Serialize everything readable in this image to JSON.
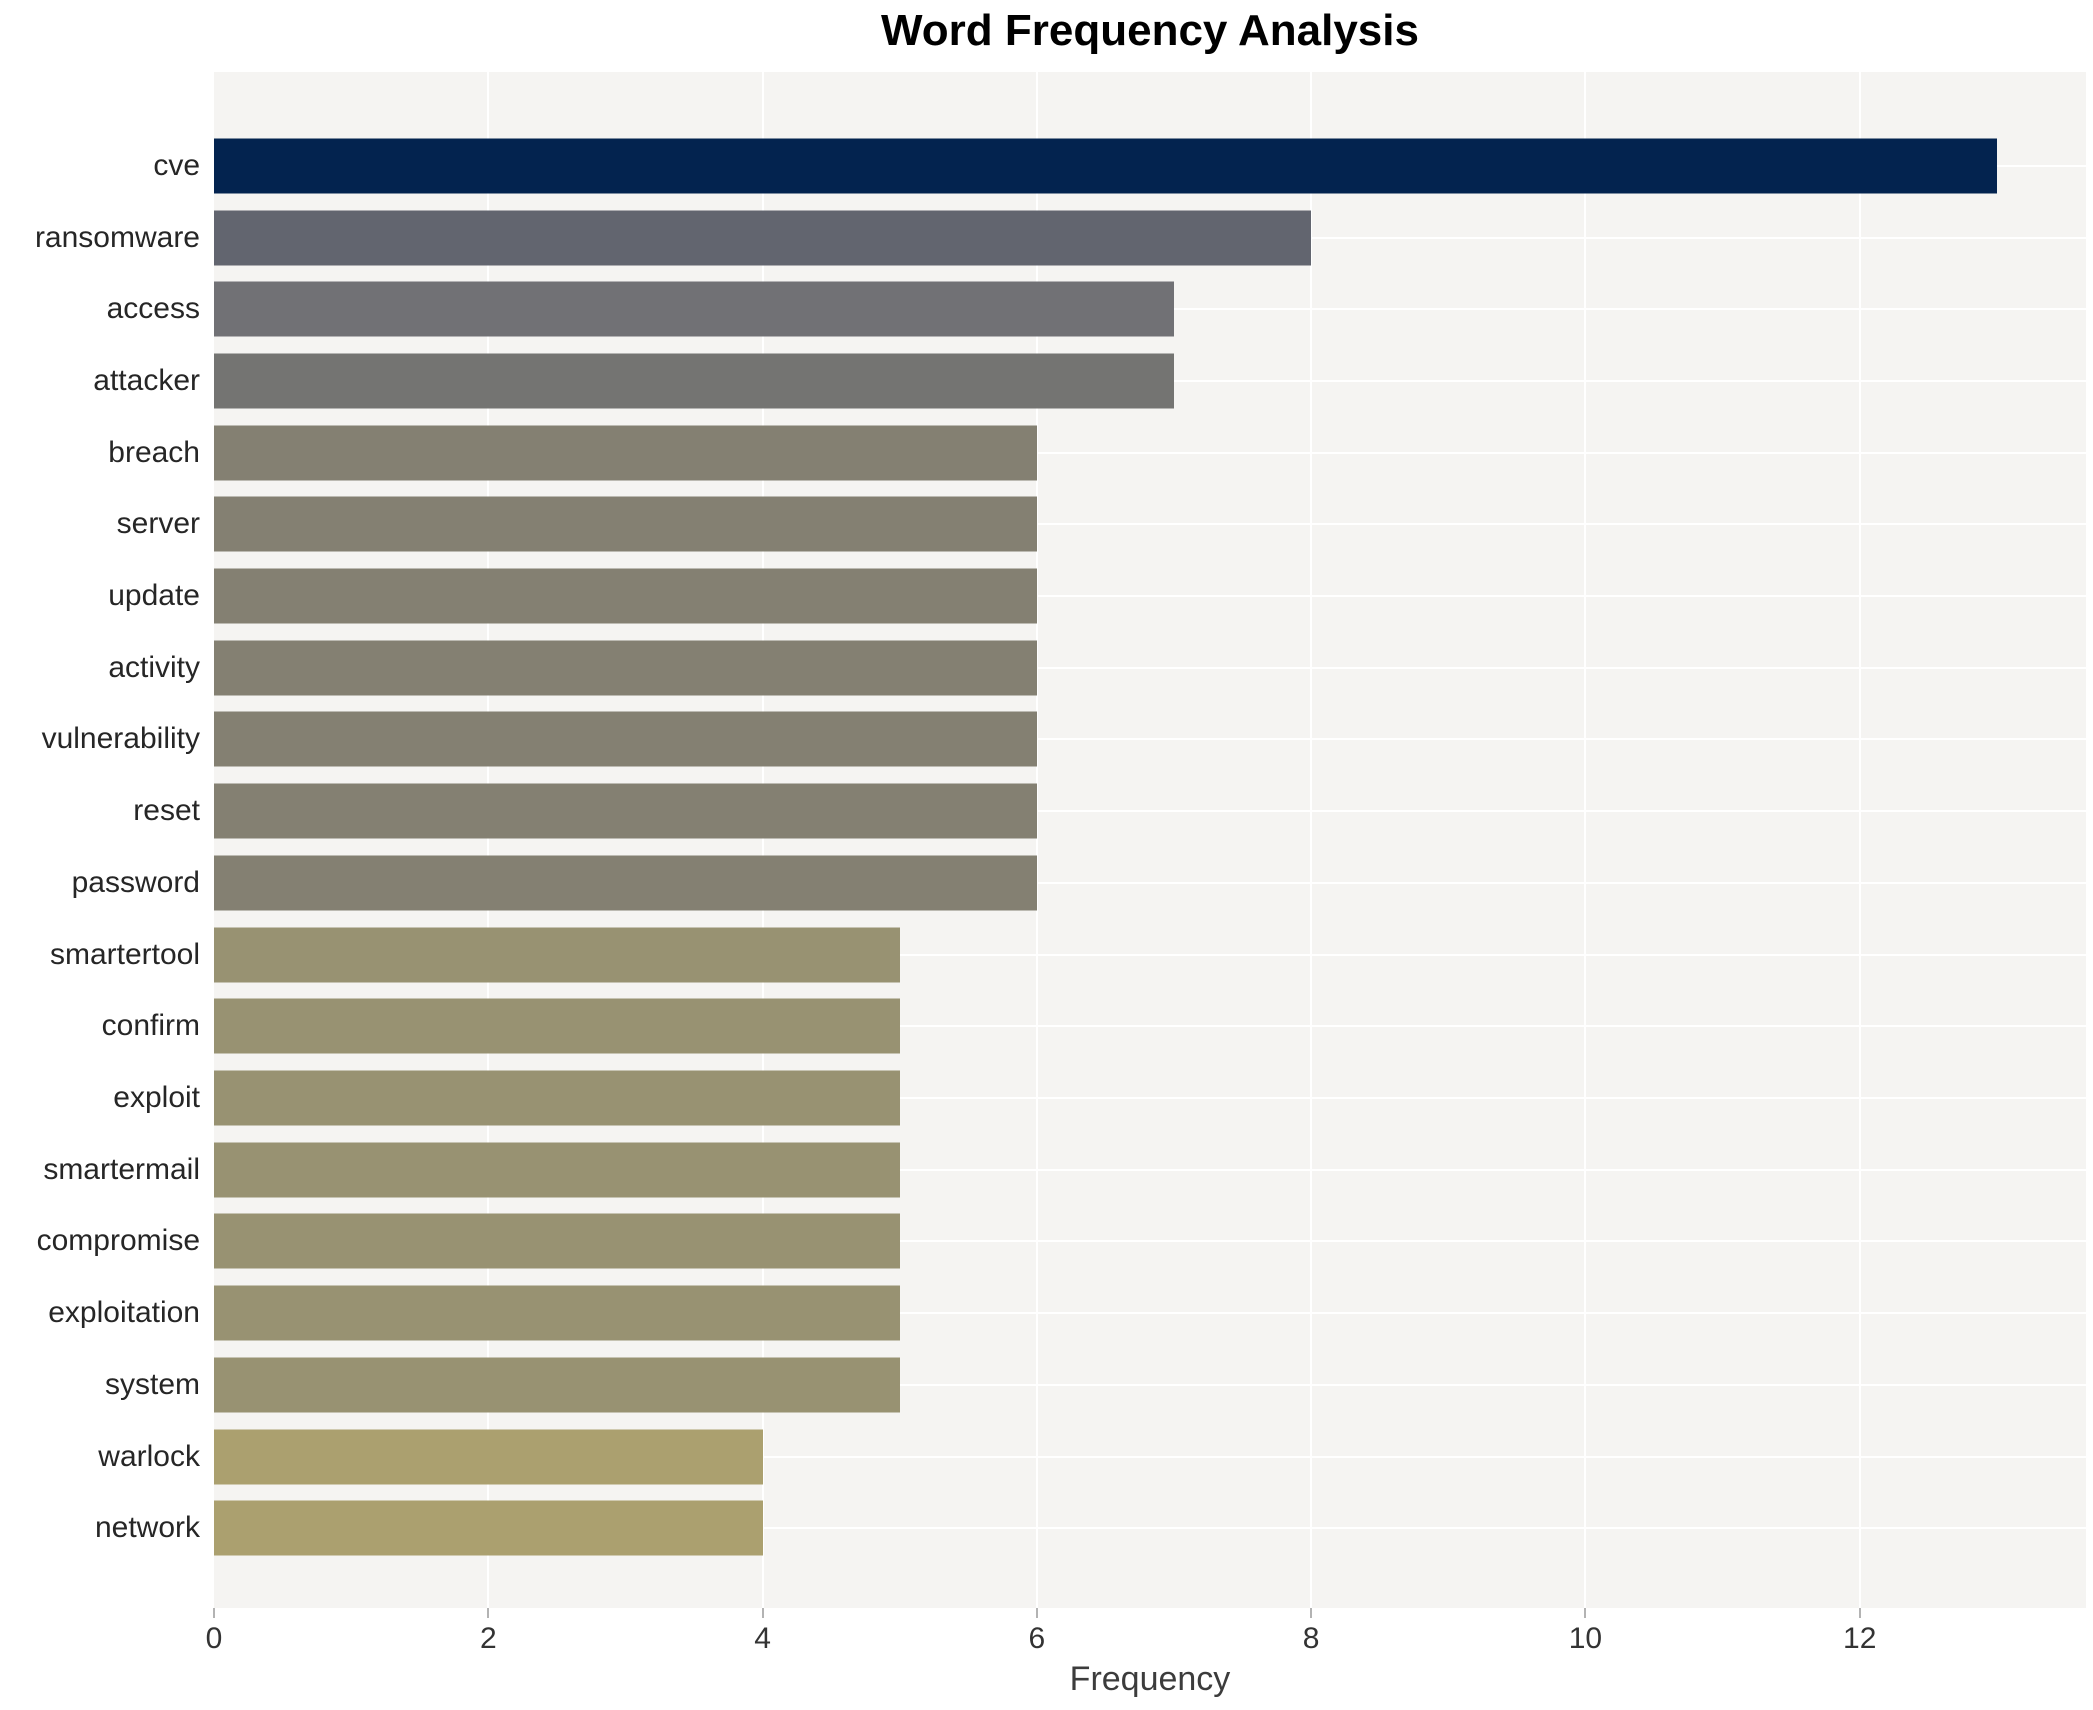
{
  "chart_data": {
    "type": "bar",
    "orientation": "horizontal",
    "title": "Word Frequency Analysis",
    "xlabel": "Frequency",
    "ylabel": "",
    "xlim": [
      0,
      13.65
    ],
    "xticks": [
      0,
      2,
      4,
      6,
      8,
      10,
      12
    ],
    "grid": true,
    "legend_position": "none",
    "categories": [
      "cve",
      "ransomware",
      "access",
      "attacker",
      "breach",
      "server",
      "update",
      "activity",
      "vulnerability",
      "reset",
      "password",
      "smartertool",
      "confirm",
      "exploit",
      "smartermail",
      "compromise",
      "exploitation",
      "system",
      "warlock",
      "network"
    ],
    "values": [
      13,
      8,
      7,
      7,
      6,
      6,
      6,
      6,
      6,
      6,
      6,
      5,
      5,
      5,
      5,
      5,
      5,
      5,
      4,
      4
    ],
    "bar_colors": [
      "#03234f",
      "#62656f",
      "#717175",
      "#747472",
      "#848072",
      "#848072",
      "#848072",
      "#848072",
      "#848072",
      "#848072",
      "#848072",
      "#989272",
      "#989272",
      "#989272",
      "#989272",
      "#989272",
      "#989272",
      "#989272",
      "#aba06f",
      "#aba06f"
    ],
    "colors": {
      "plot_background": "#f5f4f2",
      "page_background": "#ffffff",
      "gridline": "#ffffff",
      "tick_mark": "#b3b3b3",
      "tick_label": "#333333",
      "axis_label": "#3c3c3c",
      "category_label": "#262626",
      "title": "#000000"
    }
  }
}
